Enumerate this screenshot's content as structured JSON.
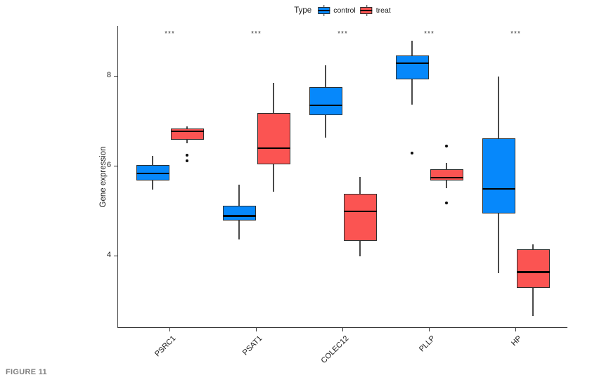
{
  "figure_caption": "FIGURE 11",
  "legend": {
    "title": "Type",
    "items": [
      {
        "label": "control",
        "color": "#0688FB"
      },
      {
        "label": "treat",
        "color": "#FB5452"
      }
    ]
  },
  "chart_data": {
    "type": "boxplot",
    "title": "",
    "xlabel": "",
    "ylabel": "Gene expression",
    "yticks": [
      4,
      6,
      8
    ],
    "ylim": [
      2.4,
      9.0
    ],
    "grid": false,
    "legend_position": "top-center",
    "categories": [
      "PSRC1",
      "PSAT1",
      "COLEC12",
      "PLLP",
      "HP"
    ],
    "significance": [
      "***",
      "***",
      "***",
      "***",
      "***"
    ],
    "series": [
      {
        "name": "control",
        "color": "#0688FB",
        "boxes": [
          {
            "whisker_low": 5.47,
            "q1": 5.67,
            "median": 5.83,
            "q3": 6.02,
            "whisker_high": 6.22,
            "outliers": []
          },
          {
            "whisker_low": 4.36,
            "q1": 4.78,
            "median": 4.88,
            "q3": 5.11,
            "whisker_high": 5.58,
            "outliers": []
          },
          {
            "whisker_low": 6.63,
            "q1": 7.13,
            "median": 7.34,
            "q3": 7.75,
            "whisker_high": 8.23,
            "outliers": []
          },
          {
            "whisker_low": 7.36,
            "q1": 7.92,
            "median": 8.28,
            "q3": 8.45,
            "whisker_high": 8.78,
            "outliers": [
              6.28
            ]
          },
          {
            "whisker_low": 3.61,
            "q1": 4.94,
            "median": 5.48,
            "q3": 6.61,
            "whisker_high": 7.98,
            "outliers": []
          }
        ]
      },
      {
        "name": "treat",
        "color": "#FB5452",
        "boxes": [
          {
            "whisker_low": 6.5,
            "q1": 6.58,
            "median": 6.77,
            "q3": 6.83,
            "whisker_high": 6.88,
            "outliers": [
              6.23,
              6.11
            ]
          },
          {
            "whisker_low": 5.42,
            "q1": 6.03,
            "median": 6.39,
            "q3": 7.17,
            "whisker_high": 7.84,
            "outliers": []
          },
          {
            "whisker_low": 3.98,
            "q1": 4.33,
            "median": 4.98,
            "q3": 5.38,
            "whisker_high": 5.75,
            "outliers": []
          },
          {
            "whisker_low": 5.5,
            "q1": 5.67,
            "median": 5.73,
            "q3": 5.92,
            "whisker_high": 6.06,
            "outliers": [
              6.44,
              5.17
            ]
          },
          {
            "whisker_low": 2.66,
            "q1": 3.28,
            "median": 3.63,
            "q3": 4.14,
            "whisker_high": 4.25,
            "outliers": []
          }
        ]
      }
    ]
  }
}
